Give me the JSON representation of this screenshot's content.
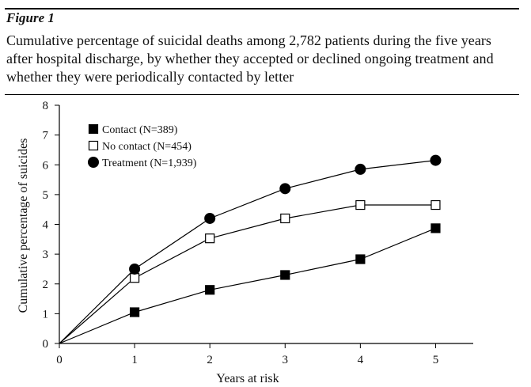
{
  "figure": {
    "label": "Figure 1",
    "caption": "Cumulative percentage of suicidal deaths among 2,782 patients during the five years after hospital discharge, by whether they accepted or declined ongoing treatment and whether they were periodically contacted by letter"
  },
  "chart_data": {
    "type": "line",
    "title": "",
    "xlabel": "Years at risk",
    "ylabel": "Cumulative percentage of suicides",
    "x": [
      0,
      1,
      2,
      3,
      4,
      5
    ],
    "xlim": [
      0,
      5.5
    ],
    "ylim": [
      0,
      8
    ],
    "xticks": [
      0,
      1,
      2,
      3,
      4,
      5
    ],
    "yticks": [
      0,
      1,
      2,
      3,
      4,
      5,
      6,
      7,
      8
    ],
    "grid": false,
    "legend_position": "top-left",
    "series": [
      {
        "name": "Contact (N=389)",
        "marker": "filled-square",
        "color": "#000000",
        "values": [
          0,
          1.05,
          1.8,
          2.3,
          2.83,
          3.87
        ]
      },
      {
        "name": "No contact (N=454)",
        "marker": "open-square",
        "color": "#000000",
        "values": [
          0,
          2.2,
          3.53,
          4.2,
          4.65,
          4.65
        ]
      },
      {
        "name": "Treatment (N=1,939)",
        "marker": "filled-circle",
        "color": "#000000",
        "values": [
          0,
          2.5,
          4.2,
          5.2,
          5.85,
          6.15
        ]
      }
    ]
  }
}
